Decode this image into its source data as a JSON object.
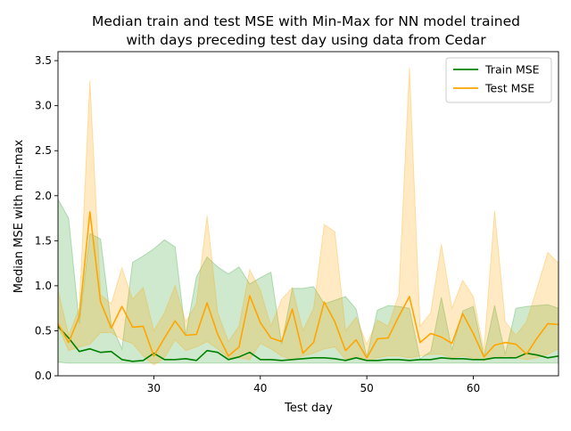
{
  "chart_data": {
    "type": "line",
    "title": "Median train and test MSE with Min-Max for NN model trained\nwith days preceding test day using data from Cedar",
    "xlabel": "Test day",
    "ylabel": "Median MSE with min-max",
    "xlim": [
      21,
      68
    ],
    "ylim": [
      0,
      3.6
    ],
    "x_ticks": [
      30,
      40,
      50,
      60
    ],
    "y_ticks": [
      0.0,
      0.5,
      1.0,
      1.5,
      2.0,
      2.5,
      3.0,
      3.5
    ],
    "legend_position": "top-right",
    "grid": false,
    "x": [
      21,
      22,
      23,
      24,
      25,
      26,
      27,
      28,
      29,
      30,
      31,
      32,
      33,
      34,
      35,
      36,
      37,
      38,
      39,
      40,
      41,
      42,
      43,
      44,
      45,
      46,
      47,
      48,
      49,
      50,
      51,
      52,
      53,
      54,
      55,
      56,
      57,
      58,
      59,
      60,
      61,
      62,
      63,
      64,
      65,
      66,
      67,
      68
    ],
    "series": [
      {
        "name": "Train MSE",
        "color": "#008000",
        "band_color": "#2ca02c",
        "values": [
          0.55,
          0.42,
          0.27,
          0.3,
          0.26,
          0.27,
          0.18,
          0.16,
          0.17,
          0.25,
          0.18,
          0.18,
          0.19,
          0.17,
          0.28,
          0.26,
          0.18,
          0.21,
          0.26,
          0.18,
          0.18,
          0.17,
          0.18,
          0.19,
          0.2,
          0.2,
          0.19,
          0.17,
          0.2,
          0.17,
          0.17,
          0.18,
          0.18,
          0.17,
          0.18,
          0.18,
          0.2,
          0.19,
          0.19,
          0.18,
          0.18,
          0.2,
          0.2,
          0.2,
          0.25,
          0.23,
          0.2,
          0.22
        ],
        "min": [
          0.15,
          0.14,
          0.14,
          0.14,
          0.14,
          0.14,
          0.14,
          0.14,
          0.14,
          0.14,
          0.14,
          0.14,
          0.14,
          0.14,
          0.14,
          0.14,
          0.14,
          0.14,
          0.14,
          0.14,
          0.14,
          0.14,
          0.14,
          0.14,
          0.14,
          0.14,
          0.14,
          0.14,
          0.14,
          0.14,
          0.14,
          0.14,
          0.14,
          0.14,
          0.14,
          0.14,
          0.14,
          0.14,
          0.14,
          0.14,
          0.14,
          0.14,
          0.14,
          0.14,
          0.14,
          0.14,
          0.14,
          0.14
        ],
        "max": [
          1.96,
          1.75,
          0.58,
          1.58,
          1.52,
          0.57,
          0.3,
          1.26,
          1.33,
          1.41,
          1.51,
          1.43,
          0.45,
          1.1,
          1.32,
          1.21,
          1.13,
          1.21,
          1.02,
          1.09,
          1.15,
          0.35,
          0.97,
          0.97,
          0.99,
          0.8,
          0.84,
          0.88,
          0.74,
          0.21,
          0.73,
          0.78,
          0.77,
          0.75,
          0.19,
          0.27,
          0.87,
          0.29,
          0.72,
          0.77,
          0.22,
          0.78,
          0.24,
          0.75,
          0.77,
          0.78,
          0.79,
          0.75
        ]
      },
      {
        "name": "Test MSE",
        "color": "#ffa500",
        "band_color": "#ffa500",
        "values": [
          0.58,
          0.37,
          0.66,
          1.82,
          0.82,
          0.53,
          0.77,
          0.54,
          0.55,
          0.22,
          0.42,
          0.61,
          0.45,
          0.46,
          0.81,
          0.46,
          0.22,
          0.32,
          0.89,
          0.59,
          0.42,
          0.38,
          0.74,
          0.25,
          0.37,
          0.82,
          0.6,
          0.28,
          0.4,
          0.2,
          0.41,
          0.42,
          0.66,
          0.88,
          0.37,
          0.47,
          0.43,
          0.36,
          0.69,
          0.47,
          0.21,
          0.34,
          0.37,
          0.35,
          0.24,
          0.42,
          0.58,
          0.57
        ],
        "min": [
          0.55,
          0.28,
          0.32,
          0.35,
          0.48,
          0.48,
          0.4,
          0.36,
          0.22,
          0.12,
          0.2,
          0.4,
          0.28,
          0.32,
          0.38,
          0.3,
          0.2,
          0.2,
          0.18,
          0.36,
          0.3,
          0.22,
          0.18,
          0.22,
          0.25,
          0.3,
          0.32,
          0.18,
          0.22,
          0.17,
          0.2,
          0.22,
          0.22,
          0.2,
          0.22,
          0.24,
          0.24,
          0.2,
          0.22,
          0.2,
          0.17,
          0.2,
          0.22,
          0.2,
          0.18,
          0.2,
          0.24,
          0.3
        ],
        "max": [
          0.95,
          0.45,
          0.75,
          3.28,
          0.9,
          0.8,
          1.2,
          0.85,
          0.98,
          0.5,
          0.7,
          1.0,
          0.6,
          0.8,
          1.78,
          0.7,
          0.38,
          0.55,
          1.18,
          0.95,
          0.55,
          0.85,
          0.98,
          0.5,
          0.75,
          1.68,
          1.6,
          0.5,
          0.65,
          0.35,
          0.62,
          0.55,
          0.9,
          3.42,
          0.55,
          0.7,
          1.46,
          0.75,
          1.06,
          0.88,
          0.28,
          1.83,
          0.6,
          0.45,
          0.6,
          0.98,
          1.37,
          1.25
        ]
      }
    ]
  }
}
